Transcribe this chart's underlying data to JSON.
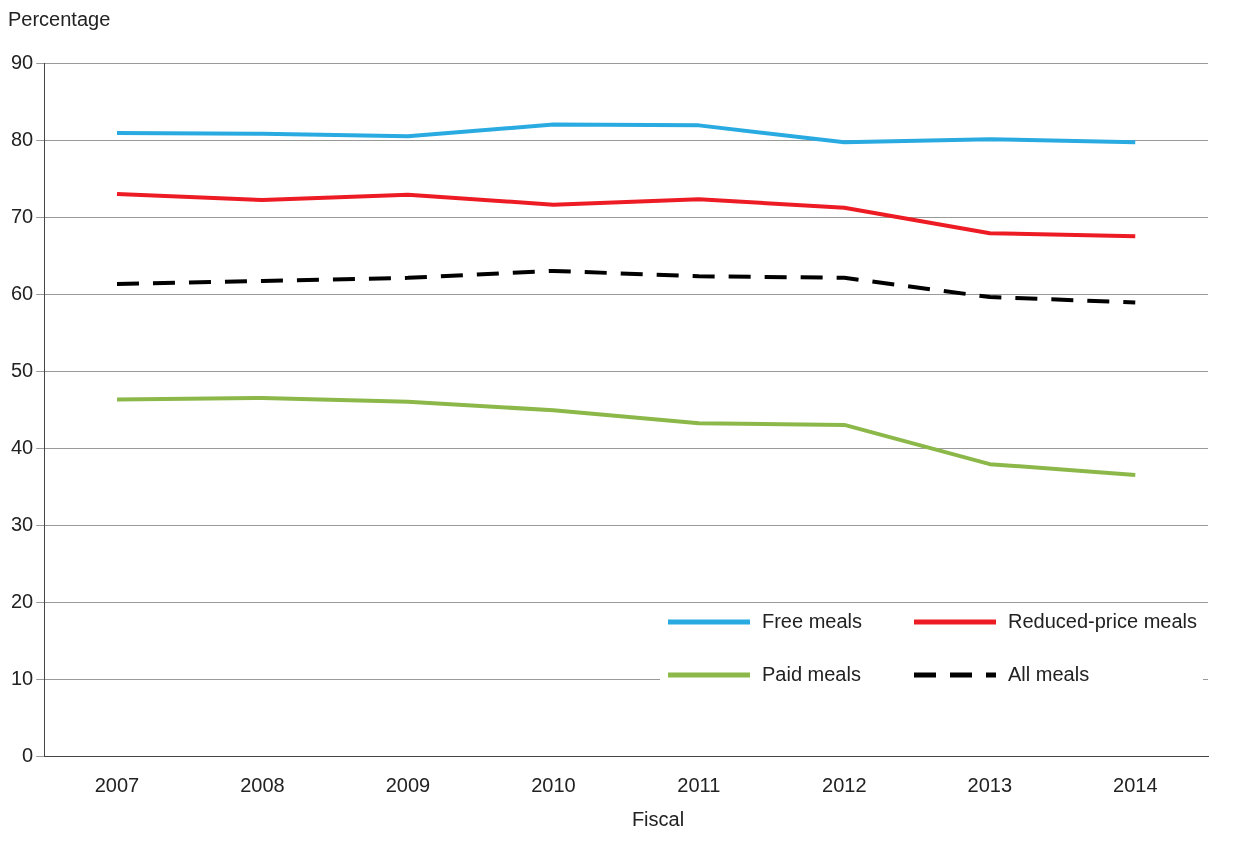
{
  "chart_data": {
    "type": "line",
    "xlabel": "Fiscal",
    "ylabel": "Percentage",
    "categories": [
      "2007",
      "2008",
      "2009",
      "2010",
      "2011",
      "2012",
      "2013",
      "2014"
    ],
    "series": [
      {
        "name": "Free meals",
        "color": "#29abe2",
        "values": [
          80.9,
          80.8,
          80.5,
          82.0,
          81.9,
          79.7,
          80.1,
          79.7
        ]
      },
      {
        "name": "Reduced-price meals",
        "color": "#ed1c24",
        "values": [
          73.0,
          72.2,
          72.9,
          71.6,
          72.3,
          71.2,
          67.9,
          67.5
        ]
      },
      {
        "name": "Paid meals",
        "color": "#8cb84a",
        "values": [
          46.3,
          46.5,
          46.0,
          44.9,
          43.2,
          43.0,
          37.9,
          36.5
        ]
      },
      {
        "name": "All meals",
        "color": "#000000",
        "line_style": "dashed",
        "values": [
          61.3,
          61.7,
          62.1,
          63.0,
          62.3,
          62.1,
          59.6,
          58.9
        ]
      }
    ],
    "ylim": [
      0,
      90
    ],
    "yticks": [
      0,
      10,
      20,
      30,
      40,
      50,
      60,
      70,
      80,
      90
    ],
    "grid": "y",
    "legend": "bottom right",
    "marker": "none"
  }
}
